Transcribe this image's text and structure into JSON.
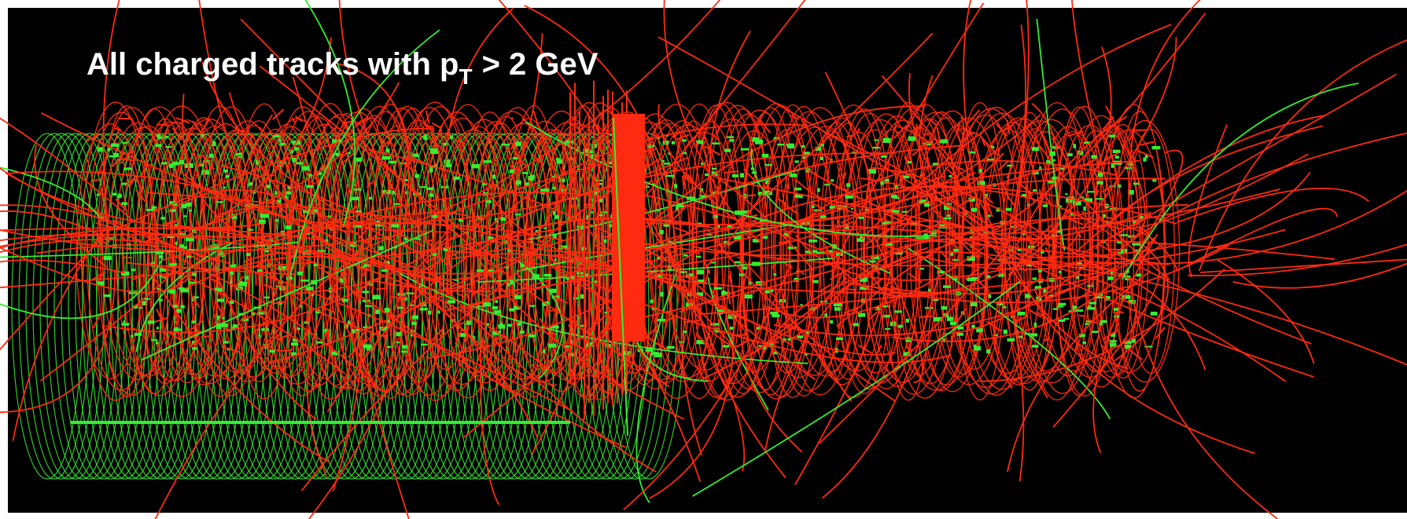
{
  "title": {
    "main": "All charged tracks with p",
    "subscript": "T",
    "suffix": "> 2 GeV"
  }
}
